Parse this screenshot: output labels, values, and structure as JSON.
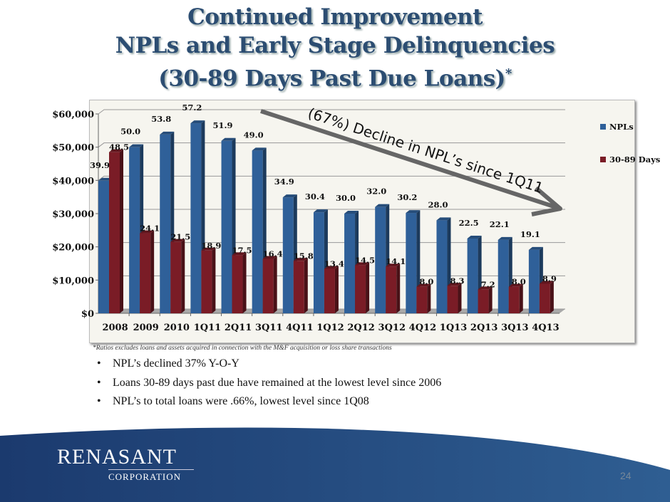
{
  "title": {
    "line1": "Continued Improvement",
    "line2": "NPLs and Early Stage Delinquencies",
    "line3": "(30-89 Days Past Due Loans)",
    "asterisk": "*"
  },
  "chart_data": {
    "type": "bar",
    "categories": [
      "2008",
      "2009",
      "2010",
      "1Q11",
      "2Q11",
      "3Q11",
      "4Q11",
      "1Q12",
      "2Q12",
      "3Q12",
      "4Q12",
      "1Q13",
      "2Q13",
      "3Q13",
      "4Q13"
    ],
    "series": [
      {
        "name": "NPLs",
        "color": "#2f6099",
        "values": [
          39.9,
          50.0,
          53.8,
          57.2,
          51.9,
          49.0,
          34.9,
          30.4,
          30.0,
          32.0,
          30.2,
          28.0,
          22.5,
          22.1,
          19.1
        ]
      },
      {
        "name": "30-89 Days",
        "color": "#7a1c26",
        "values": [
          48.5,
          24.1,
          21.5,
          18.9,
          17.5,
          16.4,
          15.8,
          13.4,
          14.5,
          14.1,
          8.0,
          8.3,
          7.2,
          8.0,
          8.9
        ]
      }
    ],
    "yticks": [
      "$0",
      "$10,000",
      "$20,000",
      "$30,000",
      "$40,000",
      "$50,000",
      "$60,000"
    ],
    "ylim": [
      0,
      60
    ],
    "annotation": "(67%) Decline in NPL’s since 1Q11",
    "legend": "right",
    "grid": true
  },
  "footnote": "*Ratios excludes loans and assets acquired in connection with the M&F acquisition or loss share transactions",
  "bullets": [
    "NPL’s declined 37% Y-O-Y",
    "Loans 30-89 days past due have remained at the lowest level since 2006",
    "NPL’s to total loans were .66%, lowest level since 1Q08"
  ],
  "logo": {
    "brand": "RENASANT",
    "sub": "CORPORATION"
  },
  "page_number": "24"
}
